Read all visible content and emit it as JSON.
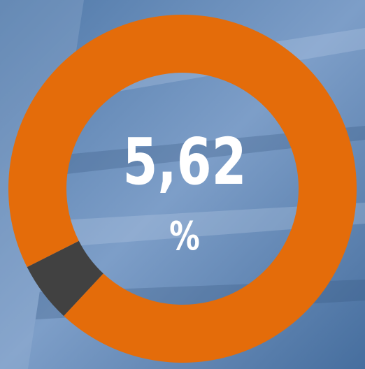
{
  "chart_data": {
    "type": "donut",
    "values": [
      5.62,
      94.38
    ],
    "value_labels": [
      "5,62",
      null
    ],
    "unit_label": "%",
    "colors": [
      "#414141",
      "#e46c0a"
    ]
  }
}
